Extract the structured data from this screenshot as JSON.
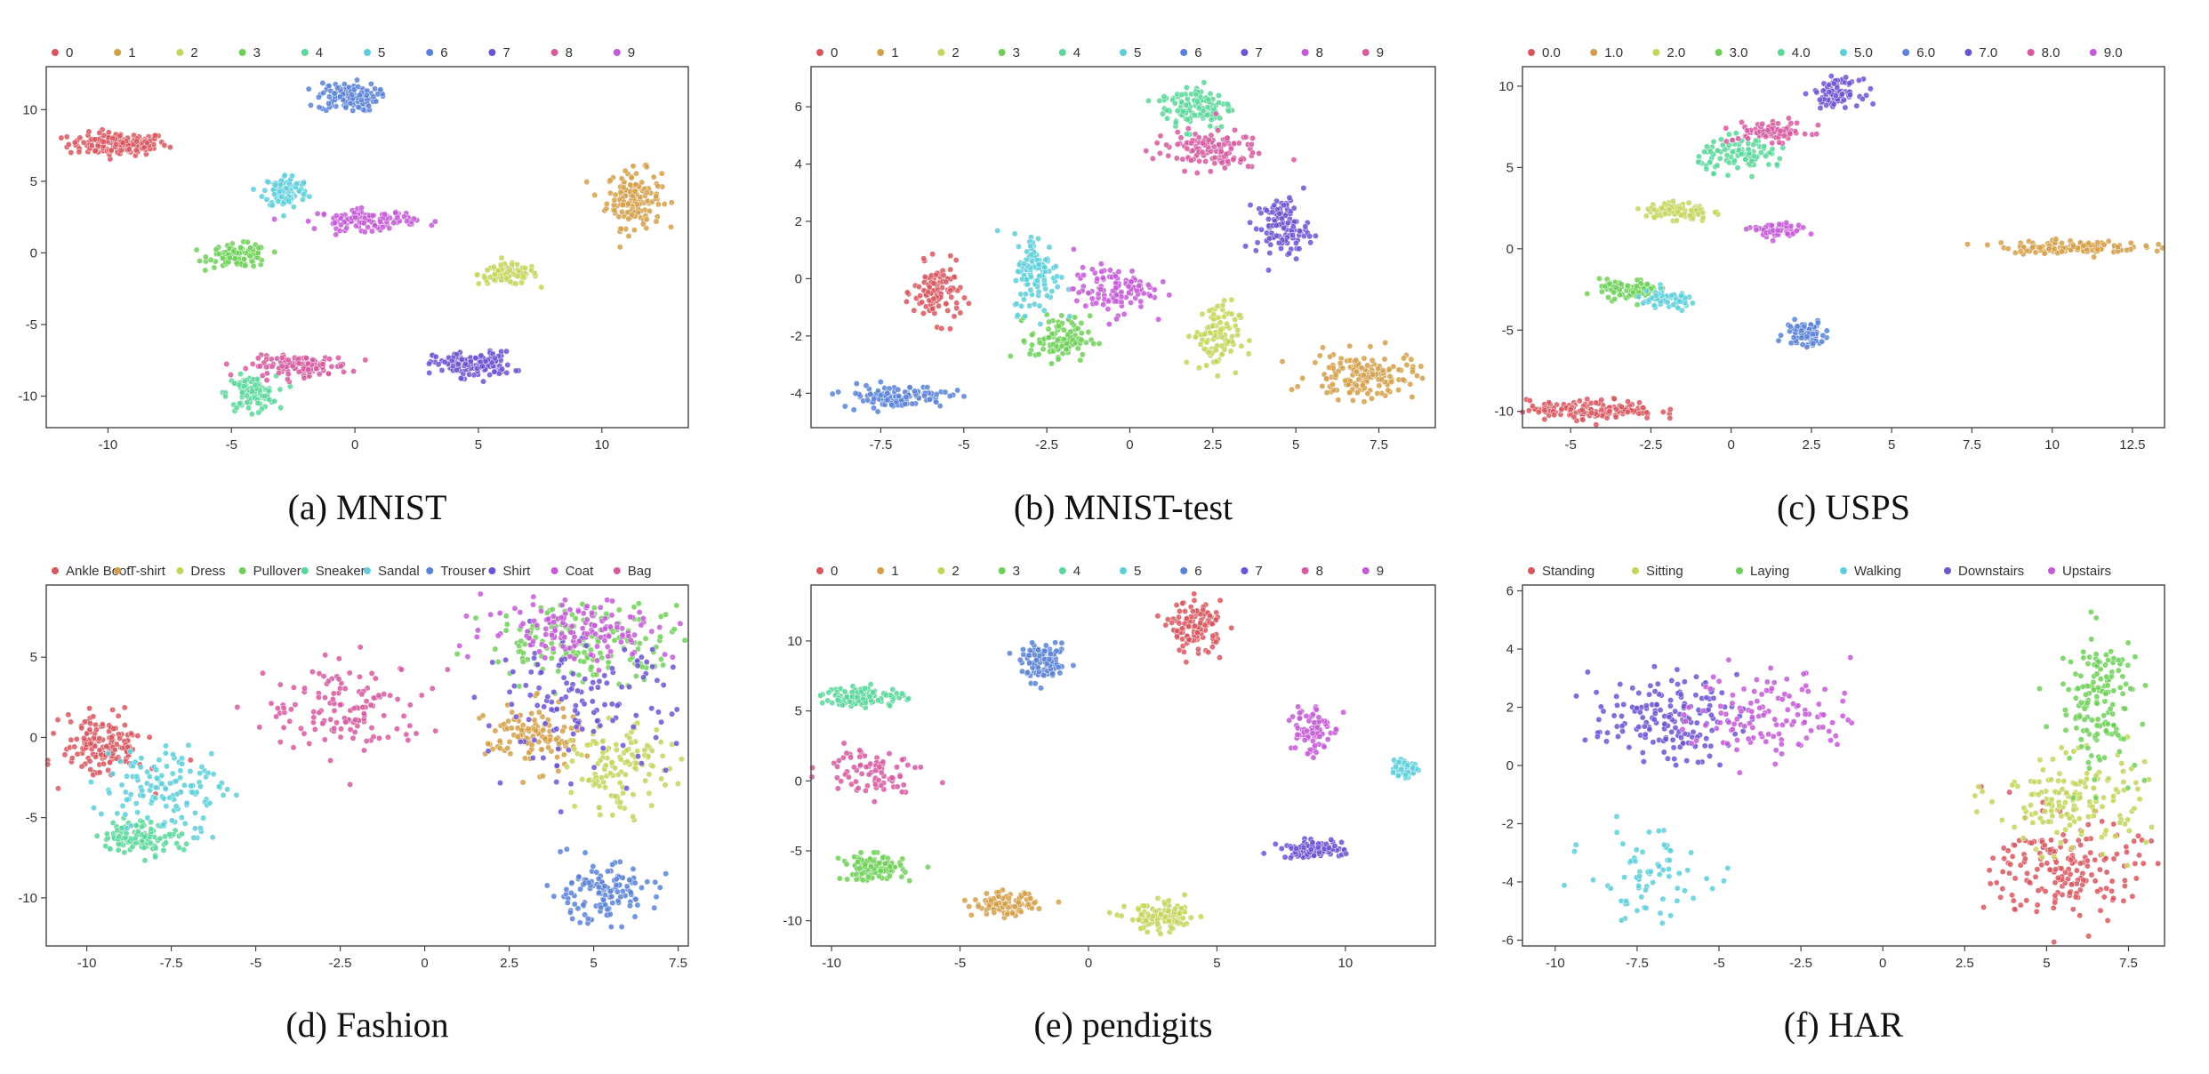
{
  "palette": [
    "#d8575f",
    "#d3a04a",
    "#c4d55a",
    "#6fd058",
    "#5bd79a",
    "#5ecfda",
    "#5b82d6",
    "#6d54d1",
    "#c45bd6",
    "#d65ba0"
  ],
  "chart_data": [
    {
      "type": "scatter",
      "caption": "(a) MNIST",
      "xlim": [
        -12.5,
        13.5
      ],
      "ylim": [
        -12.2,
        13.0
      ],
      "xticks": [
        -10,
        -5,
        0,
        5,
        10
      ],
      "yticks": [
        -10,
        -5,
        0,
        5,
        10
      ],
      "legend": [
        "0",
        "1",
        "2",
        "3",
        "4",
        "5",
        "6",
        "7",
        "8",
        "9"
      ],
      "legend_position": "top",
      "clusters": [
        {
          "label": "0",
          "color_index": 0,
          "cx": -9.6,
          "cy": 7.6,
          "sx": 1.0,
          "sy": 0.4,
          "n": 150
        },
        {
          "label": "1",
          "color_index": 1,
          "cx": 11.3,
          "cy": 3.8,
          "sx": 0.55,
          "sy": 1.0,
          "n": 150
        },
        {
          "label": "2",
          "color_index": 2,
          "cx": 6.2,
          "cy": -1.5,
          "sx": 0.6,
          "sy": 0.35,
          "n": 100
        },
        {
          "label": "3",
          "color_index": 3,
          "cx": -4.7,
          "cy": -0.2,
          "sx": 0.6,
          "sy": 0.4,
          "n": 100
        },
        {
          "label": "4",
          "color_index": 4,
          "cx": -4.2,
          "cy": -9.8,
          "sx": 0.5,
          "sy": 0.6,
          "n": 100
        },
        {
          "label": "5",
          "color_index": 5,
          "cx": -2.8,
          "cy": 4.3,
          "sx": 0.45,
          "sy": 0.6,
          "n": 100
        },
        {
          "label": "6",
          "color_index": 6,
          "cx": -0.3,
          "cy": 10.9,
          "sx": 0.6,
          "sy": 0.5,
          "n": 120
        },
        {
          "label": "7",
          "color_index": 7,
          "cx": 4.8,
          "cy": -7.8,
          "sx": 0.8,
          "sy": 0.45,
          "n": 130
        },
        {
          "label": "8",
          "color_index": 9,
          "cx": -2.2,
          "cy": -7.9,
          "sx": 1.0,
          "sy": 0.35,
          "n": 120
        },
        {
          "label": "9",
          "color_index": 8,
          "cx": 0.5,
          "cy": 2.3,
          "sx": 1.0,
          "sy": 0.35,
          "n": 110
        }
      ]
    },
    {
      "type": "scatter",
      "caption": "(b) MNIST-test",
      "xlim": [
        -9.6,
        9.2
      ],
      "ylim": [
        -5.2,
        7.4
      ],
      "xticks": [
        -7.5,
        -5.0,
        -2.5,
        0.0,
        2.5,
        5.0,
        7.5
      ],
      "yticks": [
        -4,
        -2,
        0,
        2,
        4,
        6
      ],
      "legend": [
        "0",
        "1",
        "2",
        "3",
        "4",
        "5",
        "6",
        "7",
        "8",
        "9"
      ],
      "legend_position": "top",
      "clusters": [
        {
          "label": "0",
          "color_index": 0,
          "cx": -5.8,
          "cy": -0.5,
          "sx": 0.35,
          "sy": 0.5,
          "n": 110
        },
        {
          "label": "1",
          "color_index": 1,
          "cx": 7.0,
          "cy": -3.4,
          "sx": 0.8,
          "sy": 0.4,
          "n": 150
        },
        {
          "label": "2",
          "color_index": 2,
          "cx": 2.6,
          "cy": -2.0,
          "sx": 0.35,
          "sy": 0.6,
          "n": 100
        },
        {
          "label": "3",
          "color_index": 3,
          "cx": -2.1,
          "cy": -2.1,
          "sx": 0.45,
          "sy": 0.4,
          "n": 100
        },
        {
          "label": "4",
          "color_index": 4,
          "cx": 2.0,
          "cy": 6.0,
          "sx": 0.55,
          "sy": 0.4,
          "n": 110
        },
        {
          "label": "5",
          "color_index": 5,
          "cx": -2.8,
          "cy": 0.2,
          "sx": 0.35,
          "sy": 0.7,
          "n": 110
        },
        {
          "label": "6",
          "color_index": 6,
          "cx": -7.1,
          "cy": -4.1,
          "sx": 0.8,
          "sy": 0.2,
          "n": 110
        },
        {
          "label": "7",
          "color_index": 7,
          "cx": 4.6,
          "cy": 1.8,
          "sx": 0.4,
          "sy": 0.5,
          "n": 110
        },
        {
          "label": "8",
          "color_index": 8,
          "cx": -0.5,
          "cy": -0.4,
          "sx": 0.6,
          "sy": 0.4,
          "n": 110
        },
        {
          "label": "9",
          "color_index": 9,
          "cx": 2.3,
          "cy": 4.5,
          "sx": 0.8,
          "sy": 0.35,
          "n": 120
        }
      ]
    },
    {
      "type": "scatter",
      "caption": "(c) USPS",
      "xlim": [
        -6.5,
        13.5
      ],
      "ylim": [
        -11.0,
        11.2
      ],
      "xticks": [
        -5.0,
        -2.5,
        0.0,
        2.5,
        5.0,
        7.5,
        10.0,
        12.5
      ],
      "yticks": [
        -10,
        -5,
        0,
        5,
        10
      ],
      "legend": [
        "0.0",
        "1.0",
        "2.0",
        "3.0",
        "4.0",
        "5.0",
        "6.0",
        "7.0",
        "8.0",
        "9.0"
      ],
      "legend_position": "top",
      "clusters": [
        {
          "label": "0.0",
          "color_index": 0,
          "cx": -4.3,
          "cy": -9.9,
          "sx": 1.0,
          "sy": 0.3,
          "n": 150
        },
        {
          "label": "1.0",
          "color_index": 1,
          "cx": 10.6,
          "cy": 0.1,
          "sx": 1.1,
          "sy": 0.2,
          "n": 120
        },
        {
          "label": "2.0",
          "color_index": 2,
          "cx": -1.7,
          "cy": 2.3,
          "sx": 0.5,
          "sy": 0.3,
          "n": 90
        },
        {
          "label": "3.0",
          "color_index": 3,
          "cx": -3.2,
          "cy": -2.5,
          "sx": 0.45,
          "sy": 0.3,
          "n": 80
        },
        {
          "label": "4.0",
          "color_index": 4,
          "cx": 0.4,
          "cy": 5.8,
          "sx": 0.7,
          "sy": 0.5,
          "n": 100
        },
        {
          "label": "5.0",
          "color_index": 5,
          "cx": -2.0,
          "cy": -3.2,
          "sx": 0.5,
          "sy": 0.3,
          "n": 70
        },
        {
          "label": "6.0",
          "color_index": 6,
          "cx": 2.3,
          "cy": -5.2,
          "sx": 0.3,
          "sy": 0.4,
          "n": 80
        },
        {
          "label": "7.0",
          "color_index": 7,
          "cx": 3.3,
          "cy": 9.6,
          "sx": 0.35,
          "sy": 0.4,
          "n": 80
        },
        {
          "label": "8.0",
          "color_index": 9,
          "cx": 1.3,
          "cy": 7.2,
          "sx": 0.6,
          "sy": 0.3,
          "n": 80
        },
        {
          "label": "9.0",
          "color_index": 8,
          "cx": 1.4,
          "cy": 1.1,
          "sx": 0.4,
          "sy": 0.25,
          "n": 60
        }
      ]
    },
    {
      "type": "scatter",
      "caption": "(d) Fashion",
      "xlim": [
        -11.2,
        7.8
      ],
      "ylim": [
        -13.0,
        9.5
      ],
      "xticks": [
        -10.0,
        -7.5,
        -5.0,
        -2.5,
        0.0,
        2.5,
        5.0,
        7.5
      ],
      "yticks": [
        -10,
        -5,
        0,
        5
      ],
      "legend": [
        "Ankle Boot",
        "T-shirt",
        "Dress",
        "Pullover",
        "Sneaker",
        "Sandal",
        "Trouser",
        "Shirt",
        "Coat",
        "Bag"
      ],
      "legend_position": "top",
      "clusters": [
        {
          "label": "Ankle Boot",
          "color_index": 0,
          "cx": -9.5,
          "cy": -0.5,
          "sx": 0.6,
          "sy": 1.0,
          "n": 150
        },
        {
          "label": "T-shirt",
          "color_index": 1,
          "cx": 3.2,
          "cy": 0.0,
          "sx": 0.7,
          "sy": 1.0,
          "n": 120
        },
        {
          "label": "Dress",
          "color_index": 2,
          "cx": 5.8,
          "cy": -2.0,
          "sx": 0.7,
          "sy": 1.3,
          "n": 120
        },
        {
          "label": "Pullover",
          "color_index": 3,
          "cx": 4.8,
          "cy": 6.0,
          "sx": 1.5,
          "sy": 1.2,
          "n": 160
        },
        {
          "label": "Sneaker",
          "color_index": 4,
          "cx": -8.4,
          "cy": -6.2,
          "sx": 0.6,
          "sy": 0.5,
          "n": 110
        },
        {
          "label": "Sandal",
          "color_index": 5,
          "cx": -7.7,
          "cy": -3.2,
          "sx": 0.9,
          "sy": 1.4,
          "n": 130
        },
        {
          "label": "Trouser",
          "color_index": 6,
          "cx": 5.2,
          "cy": -9.7,
          "sx": 0.8,
          "sy": 0.9,
          "n": 130
        },
        {
          "label": "Shirt",
          "color_index": 7,
          "cx": 4.5,
          "cy": 2.0,
          "sx": 1.4,
          "sy": 2.0,
          "n": 130
        },
        {
          "label": "Coat",
          "color_index": 8,
          "cx": 4.6,
          "cy": 6.8,
          "sx": 1.4,
          "sy": 1.0,
          "n": 140
        },
        {
          "label": "Bag",
          "color_index": 9,
          "cx": -2.3,
          "cy": 1.8,
          "sx": 1.2,
          "sy": 1.4,
          "n": 130
        }
      ]
    },
    {
      "type": "scatter",
      "caption": "(e) pendigits",
      "xlim": [
        -10.8,
        13.5
      ],
      "ylim": [
        -11.8,
        14.0
      ],
      "xticks": [
        -10,
        -5,
        0,
        5,
        10
      ],
      "yticks": [
        -10,
        -5,
        0,
        5,
        10
      ],
      "legend": [
        "0",
        "1",
        "2",
        "3",
        "4",
        "5",
        "6",
        "7",
        "8",
        "9"
      ],
      "legend_position": "top",
      "clusters": [
        {
          "label": "0",
          "color_index": 0,
          "cx": 4.2,
          "cy": 11.0,
          "sx": 0.5,
          "sy": 0.9,
          "n": 120
        },
        {
          "label": "1",
          "color_index": 1,
          "cx": -3.3,
          "cy": -8.8,
          "sx": 0.6,
          "sy": 0.4,
          "n": 100
        },
        {
          "label": "2",
          "color_index": 2,
          "cx": 2.9,
          "cy": -9.8,
          "sx": 0.7,
          "sy": 0.5,
          "n": 110
        },
        {
          "label": "3",
          "color_index": 3,
          "cx": -8.4,
          "cy": -6.2,
          "sx": 0.6,
          "sy": 0.45,
          "n": 110
        },
        {
          "label": "4",
          "color_index": 4,
          "cx": -8.8,
          "cy": 6.0,
          "sx": 0.8,
          "sy": 0.35,
          "n": 110
        },
        {
          "label": "5",
          "color_index": 5,
          "cx": 12.3,
          "cy": 1.0,
          "sx": 0.25,
          "sy": 0.4,
          "n": 50
        },
        {
          "label": "6",
          "color_index": 6,
          "cx": -1.7,
          "cy": 8.4,
          "sx": 0.45,
          "sy": 0.6,
          "n": 110
        },
        {
          "label": "7",
          "color_index": 7,
          "cx": 8.7,
          "cy": -4.9,
          "sx": 0.6,
          "sy": 0.3,
          "n": 100
        },
        {
          "label": "8",
          "color_index": 9,
          "cx": -8.4,
          "cy": 0.8,
          "sx": 1.0,
          "sy": 0.8,
          "n": 80
        },
        {
          "label": "9",
          "color_index": 8,
          "cx": 8.6,
          "cy": 3.7,
          "sx": 0.4,
          "sy": 1.0,
          "n": 80
        }
      ]
    },
    {
      "type": "scatter",
      "caption": "(f) HAR",
      "xlim": [
        -11.0,
        8.6
      ],
      "ylim": [
        -6.2,
        6.2
      ],
      "xticks": [
        -10.0,
        -7.5,
        -5.0,
        -2.5,
        0.0,
        2.5,
        5.0,
        7.5
      ],
      "yticks": [
        -6,
        -4,
        -2,
        0,
        2,
        4,
        6
      ],
      "legend": [
        "Standing",
        "Sitting",
        "Laying",
        "Walking",
        "Downstairs",
        "Upstairs"
      ],
      "legend_position": "top",
      "clusters": [
        {
          "label": "Standing",
          "color_index": 0,
          "cx": 5.6,
          "cy": -3.6,
          "sx": 1.1,
          "sy": 0.9,
          "n": 180
        },
        {
          "label": "Sitting",
          "color_index": 2,
          "cx": 5.7,
          "cy": -1.2,
          "sx": 1.2,
          "sy": 0.8,
          "n": 150
        },
        {
          "label": "Laying",
          "color_index": 3,
          "cx": 6.6,
          "cy": 2.2,
          "sx": 0.6,
          "sy": 1.2,
          "n": 150
        },
        {
          "label": "Walking",
          "color_index": 5,
          "cx": -7.2,
          "cy": -3.8,
          "sx": 0.9,
          "sy": 0.8,
          "n": 70
        },
        {
          "label": "Downstairs",
          "color_index": 7,
          "cx": -6.7,
          "cy": 1.6,
          "sx": 1.1,
          "sy": 0.7,
          "n": 160
        },
        {
          "label": "Upstairs",
          "color_index": 8,
          "cx": -3.3,
          "cy": 1.8,
          "sx": 1.2,
          "sy": 0.8,
          "n": 120
        }
      ]
    }
  ]
}
